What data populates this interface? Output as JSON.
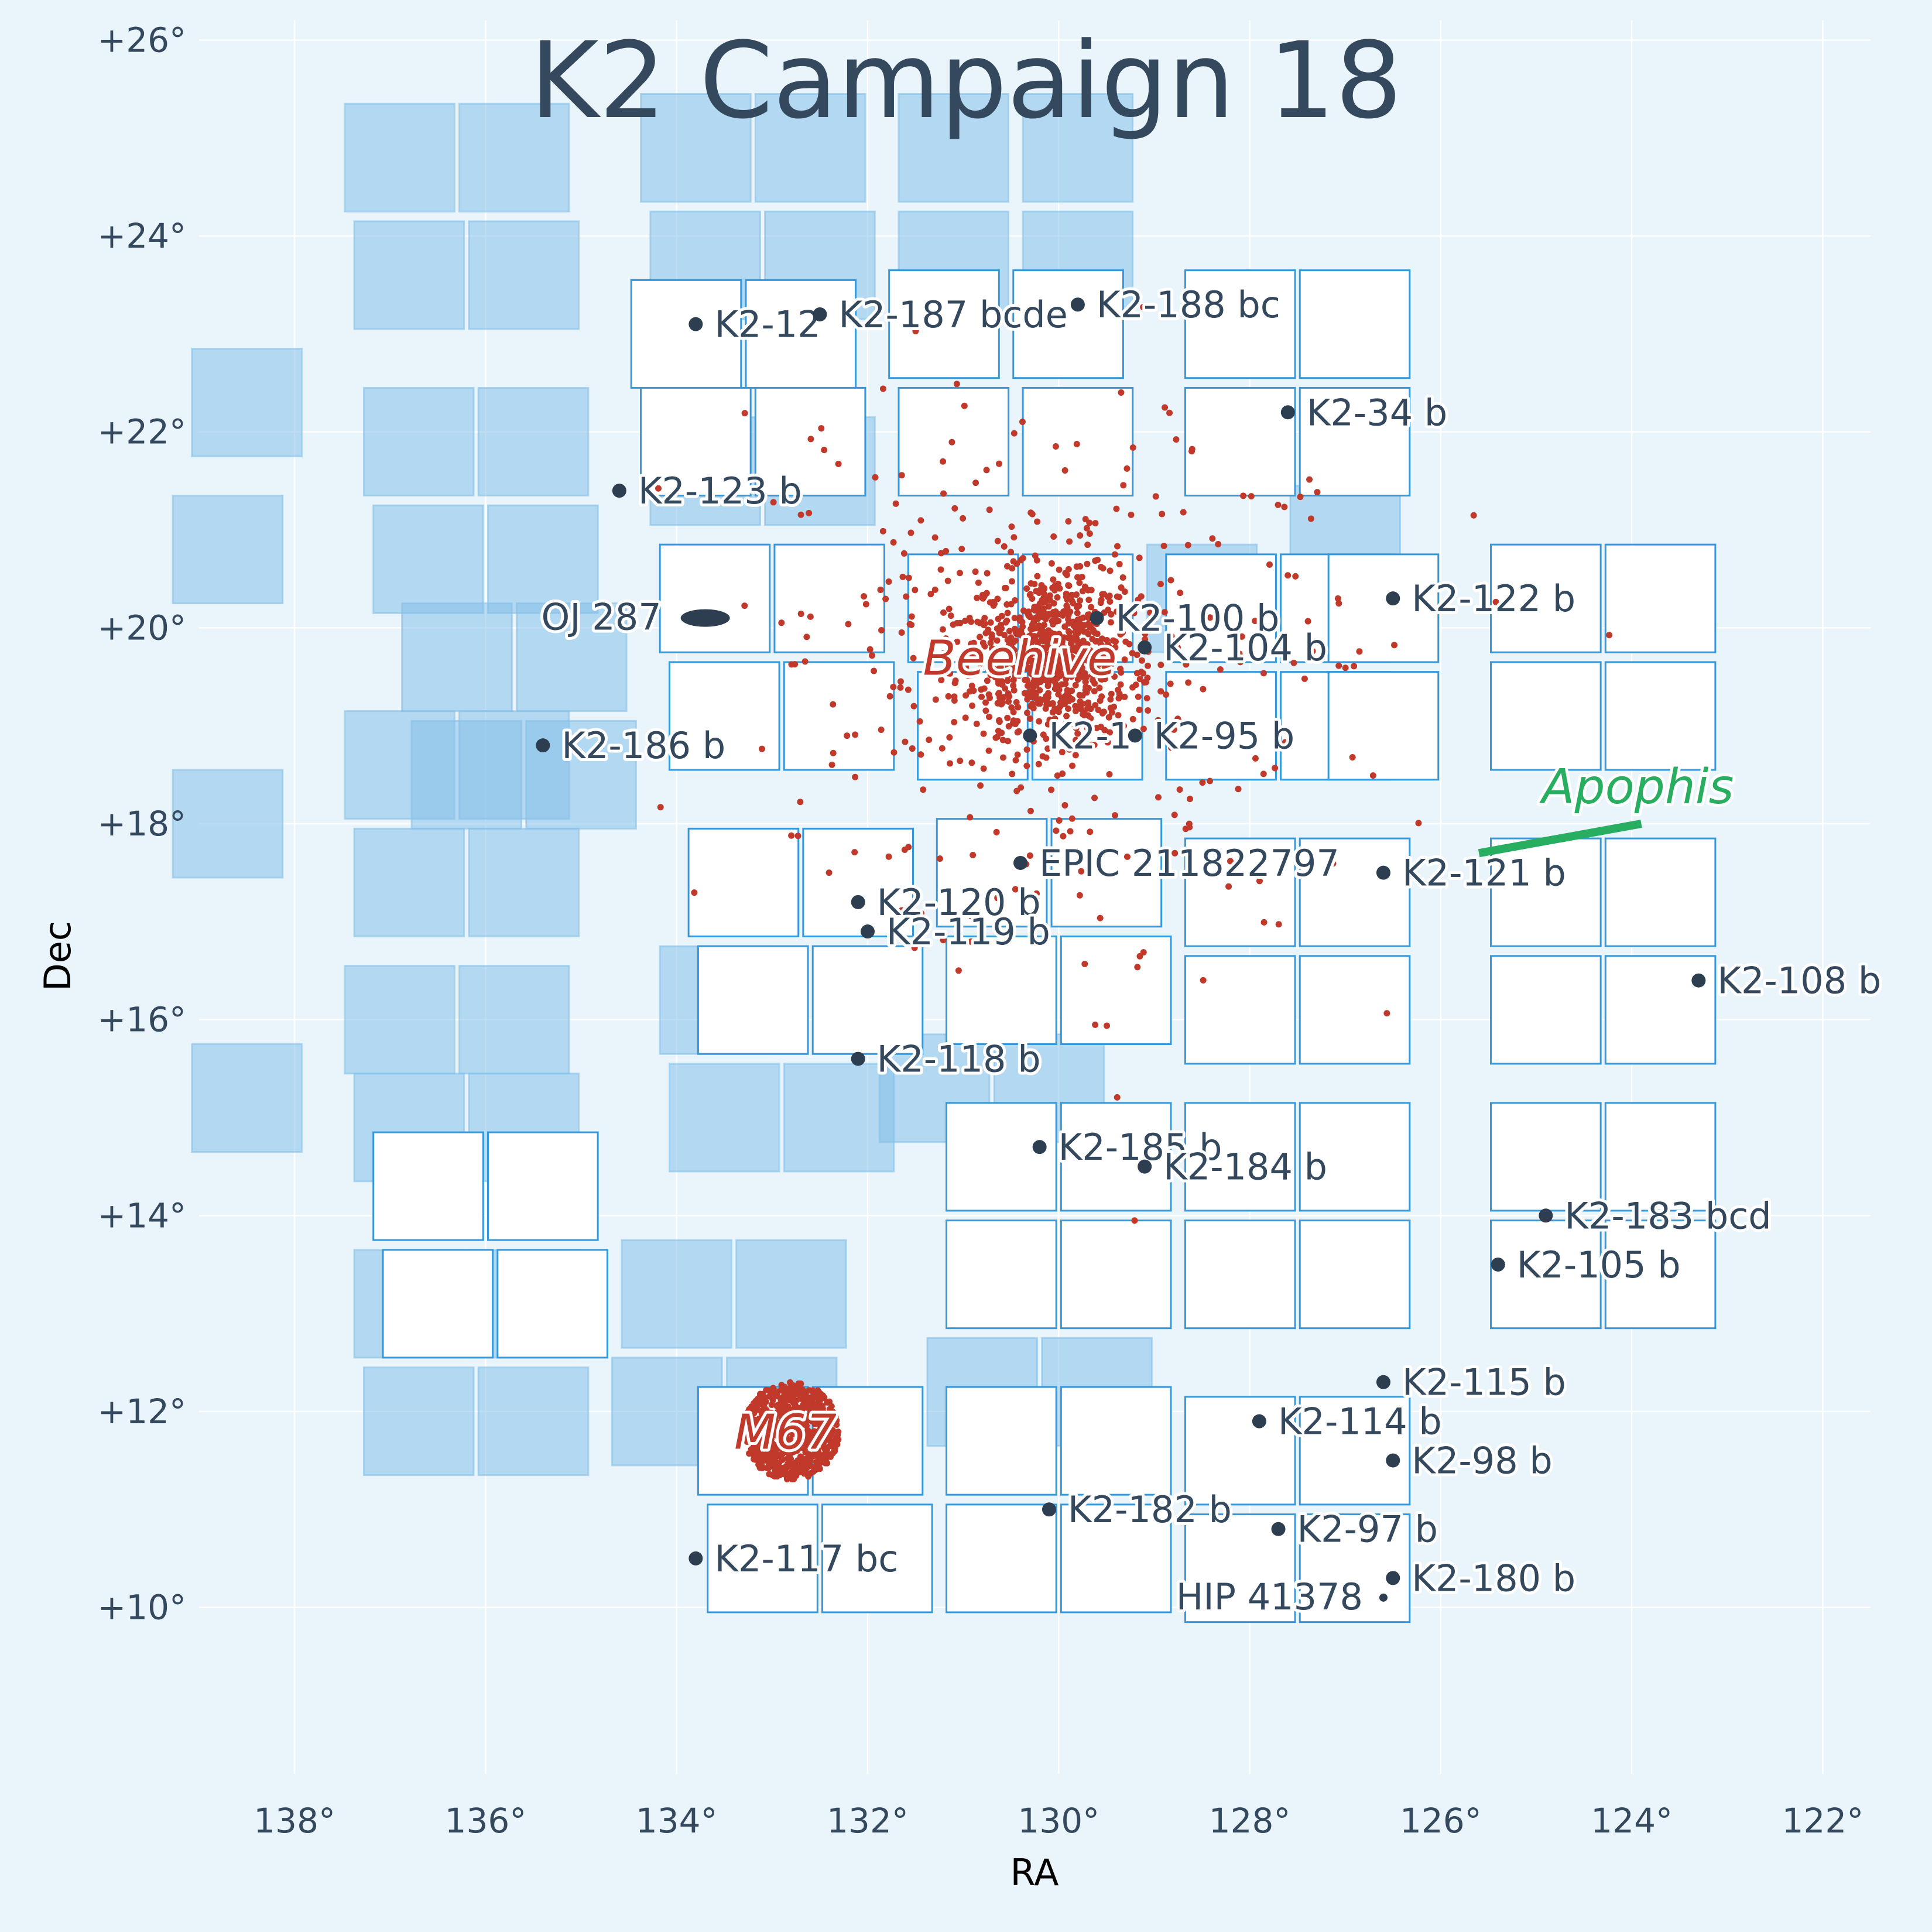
{
  "chart_data": {
    "type": "scatter",
    "title": "K2 Campaign 18",
    "xlabel": "RA",
    "ylabel": "Dec",
    "xlim": [
      139.0,
      121.5
    ],
    "ylim": [
      8.3,
      26.2
    ],
    "x_ticks": [
      138,
      136,
      134,
      132,
      130,
      128,
      126,
      124,
      122
    ],
    "x_tick_labels": [
      "138°",
      "136°",
      "134°",
      "132°",
      "130°",
      "128°",
      "126°",
      "124°",
      "122°"
    ],
    "y_ticks": [
      10,
      12,
      14,
      16,
      18,
      20,
      22,
      24,
      26
    ],
    "y_tick_labels": [
      "+10°",
      "+12°",
      "+14°",
      "+16°",
      "+18°",
      "+20°",
      "+22°",
      "+24°",
      "+26°"
    ],
    "grid": true,
    "colors": {
      "background": "#eaf4fb",
      "field_fill": "#ffffff",
      "field_stroke": "#3498db",
      "other_campaign_fill": "#85c1e9",
      "star": "#c0392b",
      "planet": "#2c3e50",
      "asteroid": "#27ae60",
      "text": "#34495e"
    },
    "channels": [
      {
        "ra": 133.9,
        "dec": 23.0
      },
      {
        "ra": 132.7,
        "dec": 23.0
      },
      {
        "ra": 133.8,
        "dec": 21.9
      },
      {
        "ra": 132.6,
        "dec": 21.9
      },
      {
        "ra": 131.2,
        "dec": 23.1
      },
      {
        "ra": 129.9,
        "dec": 23.1
      },
      {
        "ra": 131.1,
        "dec": 21.9
      },
      {
        "ra": 129.8,
        "dec": 21.9
      },
      {
        "ra": 128.1,
        "dec": 23.1
      },
      {
        "ra": 126.9,
        "dec": 23.1
      },
      {
        "ra": 128.1,
        "dec": 21.9
      },
      {
        "ra": 126.9,
        "dec": 21.9
      },
      {
        "ra": 133.6,
        "dec": 20.3
      },
      {
        "ra": 132.4,
        "dec": 20.3
      },
      {
        "ra": 133.5,
        "dec": 19.1
      },
      {
        "ra": 132.3,
        "dec": 19.1
      },
      {
        "ra": 131.0,
        "dec": 20.2
      },
      {
        "ra": 129.8,
        "dec": 20.2
      },
      {
        "ra": 130.9,
        "dec": 19.0
      },
      {
        "ra": 129.7,
        "dec": 19.0
      },
      {
        "ra": 128.3,
        "dec": 20.2
      },
      {
        "ra": 127.1,
        "dec": 20.2
      },
      {
        "ra": 128.3,
        "dec": 19.0
      },
      {
        "ra": 127.1,
        "dec": 19.0
      },
      {
        "ra": 126.6,
        "dec": 20.2
      },
      {
        "ra": 126.6,
        "dec": 19.0
      },
      {
        "ra": 124.9,
        "dec": 20.3
      },
      {
        "ra": 123.7,
        "dec": 20.3
      },
      {
        "ra": 124.9,
        "dec": 19.1
      },
      {
        "ra": 123.7,
        "dec": 19.1
      },
      {
        "ra": 133.3,
        "dec": 17.4
      },
      {
        "ra": 132.1,
        "dec": 17.4
      },
      {
        "ra": 133.2,
        "dec": 16.2
      },
      {
        "ra": 132.0,
        "dec": 16.2
      },
      {
        "ra": 130.7,
        "dec": 17.5
      },
      {
        "ra": 129.5,
        "dec": 17.5
      },
      {
        "ra": 130.6,
        "dec": 16.3
      },
      {
        "ra": 129.4,
        "dec": 16.3
      },
      {
        "ra": 128.1,
        "dec": 17.3
      },
      {
        "ra": 126.9,
        "dec": 17.3
      },
      {
        "ra": 128.1,
        "dec": 16.1
      },
      {
        "ra": 126.9,
        "dec": 16.1
      },
      {
        "ra": 124.9,
        "dec": 17.3
      },
      {
        "ra": 123.7,
        "dec": 17.3
      },
      {
        "ra": 124.9,
        "dec": 16.1
      },
      {
        "ra": 123.7,
        "dec": 16.1
      },
      {
        "ra": 136.6,
        "dec": 14.3
      },
      {
        "ra": 135.4,
        "dec": 14.3
      },
      {
        "ra": 136.5,
        "dec": 13.1
      },
      {
        "ra": 135.3,
        "dec": 13.1
      },
      {
        "ra": 130.6,
        "dec": 14.6
      },
      {
        "ra": 129.4,
        "dec": 14.6
      },
      {
        "ra": 130.6,
        "dec": 13.4
      },
      {
        "ra": 129.4,
        "dec": 13.4
      },
      {
        "ra": 128.1,
        "dec": 14.6
      },
      {
        "ra": 126.9,
        "dec": 14.6
      },
      {
        "ra": 128.1,
        "dec": 13.4
      },
      {
        "ra": 126.9,
        "dec": 13.4
      },
      {
        "ra": 124.9,
        "dec": 14.6
      },
      {
        "ra": 123.7,
        "dec": 14.6
      },
      {
        "ra": 124.9,
        "dec": 13.4
      },
      {
        "ra": 123.7,
        "dec": 13.4
      },
      {
        "ra": 133.2,
        "dec": 11.7
      },
      {
        "ra": 132.0,
        "dec": 11.7
      },
      {
        "ra": 133.1,
        "dec": 10.5
      },
      {
        "ra": 131.9,
        "dec": 10.5
      },
      {
        "ra": 130.6,
        "dec": 11.7
      },
      {
        "ra": 129.4,
        "dec": 11.7
      },
      {
        "ra": 130.6,
        "dec": 10.5
      },
      {
        "ra": 129.4,
        "dec": 10.5
      },
      {
        "ra": 128.1,
        "dec": 11.6
      },
      {
        "ra": 126.9,
        "dec": 11.6
      },
      {
        "ra": 128.1,
        "dec": 10.4
      },
      {
        "ra": 126.9,
        "dec": 10.4
      }
    ],
    "other_campaign_channels": [
      {
        "ra": 136.9,
        "dec": 24.8
      },
      {
        "ra": 135.7,
        "dec": 24.8
      },
      {
        "ra": 136.8,
        "dec": 23.6
      },
      {
        "ra": 135.6,
        "dec": 23.6
      },
      {
        "ra": 133.8,
        "dec": 24.9
      },
      {
        "ra": 132.6,
        "dec": 24.9
      },
      {
        "ra": 133.7,
        "dec": 23.7
      },
      {
        "ra": 132.5,
        "dec": 23.7
      },
      {
        "ra": 131.1,
        "dec": 24.9
      },
      {
        "ra": 129.8,
        "dec": 24.9
      },
      {
        "ra": 131.1,
        "dec": 23.7
      },
      {
        "ra": 129.8,
        "dec": 23.7
      },
      {
        "ra": 136.7,
        "dec": 21.9
      },
      {
        "ra": 135.5,
        "dec": 21.9
      },
      {
        "ra": 136.6,
        "dec": 20.7
      },
      {
        "ra": 135.4,
        "dec": 20.7
      },
      {
        "ra": 133.7,
        "dec": 21.6
      },
      {
        "ra": 132.5,
        "dec": 21.6
      },
      {
        "ra": 136.3,
        "dec": 19.7
      },
      {
        "ra": 135.1,
        "dec": 19.7
      },
      {
        "ra": 136.2,
        "dec": 18.5
      },
      {
        "ra": 135.0,
        "dec": 18.5
      },
      {
        "ra": 136.9,
        "dec": 18.6
      },
      {
        "ra": 135.7,
        "dec": 18.6
      },
      {
        "ra": 136.8,
        "dec": 17.4
      },
      {
        "ra": 135.6,
        "dec": 17.4
      },
      {
        "ra": 136.9,
        "dec": 16.0
      },
      {
        "ra": 135.7,
        "dec": 16.0
      },
      {
        "ra": 136.8,
        "dec": 14.9
      },
      {
        "ra": 135.6,
        "dec": 14.9
      },
      {
        "ra": 133.6,
        "dec": 16.2
      },
      {
        "ra": 133.5,
        "dec": 15.0
      },
      {
        "ra": 132.3,
        "dec": 15.0
      },
      {
        "ra": 134.0,
        "dec": 13.2
      },
      {
        "ra": 132.8,
        "dec": 13.2
      },
      {
        "ra": 134.1,
        "dec": 12.0
      },
      {
        "ra": 132.9,
        "dec": 12.0
      },
      {
        "ra": 136.8,
        "dec": 13.1
      },
      {
        "ra": 135.6,
        "dec": 13.1
      },
      {
        "ra": 136.7,
        "dec": 11.9
      },
      {
        "ra": 135.5,
        "dec": 11.9
      },
      {
        "ra": 131.3,
        "dec": 15.3
      },
      {
        "ra": 130.1,
        "dec": 15.3
      },
      {
        "ra": 130.8,
        "dec": 12.2
      },
      {
        "ra": 129.6,
        "dec": 12.2
      },
      {
        "ra": 128.5,
        "dec": 20.3
      },
      {
        "ra": 127.0,
        "dec": 20.9
      },
      {
        "ra": 138.7,
        "dec": 20.8
      },
      {
        "ra": 138.7,
        "dec": 18.0
      },
      {
        "ra": 138.5,
        "dec": 15.2
      },
      {
        "ra": 138.5,
        "dec": 22.3
      }
    ],
    "planets": [
      {
        "label": "K2-12",
        "ra": 133.8,
        "dec": 23.1
      },
      {
        "label": "K2-187 bcde",
        "ra": 132.5,
        "dec": 23.2
      },
      {
        "label": "K2-188 bc",
        "ra": 129.8,
        "dec": 23.3
      },
      {
        "label": "K2-34 b",
        "ra": 127.6,
        "dec": 22.2
      },
      {
        "label": "K2-123 b",
        "ra": 134.6,
        "dec": 21.4
      },
      {
        "label": "K2-122 b",
        "ra": 126.5,
        "dec": 20.3
      },
      {
        "label": "OJ 287",
        "ra": 133.7,
        "dec": 20.1
      },
      {
        "label": "K2-100 b",
        "ra": 129.6,
        "dec": 20.1
      },
      {
        "label": "K2-104 b",
        "ra": 129.1,
        "dec": 19.8
      },
      {
        "label": "K2-186 b",
        "ra": 135.4,
        "dec": 18.8
      },
      {
        "label": "K2-1",
        "ra": 130.3,
        "dec": 18.9
      },
      {
        "label": "K2-95 b",
        "ra": 129.2,
        "dec": 18.9
      },
      {
        "label": "EPIC 211822797",
        "ra": 130.4,
        "dec": 17.6
      },
      {
        "label": "K2-121 b",
        "ra": 126.6,
        "dec": 17.5
      },
      {
        "label": "K2-120 b",
        "ra": 132.1,
        "dec": 17.2
      },
      {
        "label": "K2-119 b",
        "ra": 132.0,
        "dec": 16.9
      },
      {
        "label": "K2-108 b",
        "ra": 123.3,
        "dec": 16.4
      },
      {
        "label": "K2-118 b",
        "ra": 132.1,
        "dec": 15.6
      },
      {
        "label": "K2-185 b",
        "ra": 130.2,
        "dec": 14.7
      },
      {
        "label": "K2-184 b",
        "ra": 129.1,
        "dec": 14.5
      },
      {
        "label": "K2-183 bcd",
        "ra": 124.9,
        "dec": 14.0
      },
      {
        "label": "K2-105 b",
        "ra": 125.4,
        "dec": 13.5
      },
      {
        "label": "K2-115 b",
        "ra": 126.6,
        "dec": 12.3
      },
      {
        "label": "K2-114 b",
        "ra": 127.9,
        "dec": 11.9
      },
      {
        "label": "K2-98 b",
        "ra": 126.5,
        "dec": 11.5
      },
      {
        "label": "K2-182 b",
        "ra": 130.1,
        "dec": 11.0
      },
      {
        "label": "K2-97 b",
        "ra": 127.7,
        "dec": 10.8
      },
      {
        "label": "K2-117 bc",
        "ra": 133.8,
        "dec": 10.5
      },
      {
        "label": "K2-180 b",
        "ra": 126.5,
        "dec": 10.3
      },
      {
        "label": "HIP 41378",
        "ra": 126.6,
        "dec": 10.1
      }
    ],
    "clusters": [
      {
        "label": "Beehive",
        "ra": 130.1,
        "dec": 19.7,
        "radius_deg": 1.4,
        "spread_deg": 2.6,
        "count": 1100
      },
      {
        "label": "M67",
        "ra": 132.8,
        "dec": 11.8,
        "radius_deg": 0.5,
        "spread_deg": 0.5,
        "count": 700
      }
    ],
    "asteroid": {
      "label": "Apophis",
      "start": {
        "ra": 125.6,
        "dec": 17.7
      },
      "end": {
        "ra": 123.9,
        "dec": 18.0
      }
    }
  }
}
